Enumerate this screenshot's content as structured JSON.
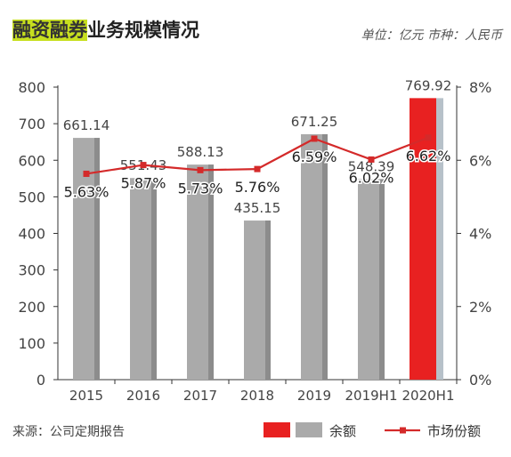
{
  "header": {
    "title_highlight": "融资融券",
    "title_rest": "业务规模情况",
    "unit": "单位：亿元 市种：人民币"
  },
  "source": "来源：公司定期报告",
  "colors": {
    "bar": "#aaaaaa",
    "bar_highlight": "#e82121",
    "line": "#d42a2a",
    "axis": "#333333"
  },
  "chart_data": {
    "type": "bar",
    "categories": [
      "2015",
      "2016",
      "2017",
      "2018",
      "2019",
      "2019H1",
      "2020H1"
    ],
    "series": [
      {
        "name": "余额",
        "type": "bar",
        "axis": "left",
        "values": [
          661.14,
          551.43,
          588.13,
          435.15,
          671.25,
          548.39,
          769.92
        ],
        "labels": [
          "661.14",
          "551.43",
          "588.13",
          "435.15",
          "671.25",
          "548.39",
          "769.92"
        ],
        "highlight_index": 6
      },
      {
        "name": "市场份额",
        "type": "line",
        "axis": "right",
        "values": [
          5.63,
          5.87,
          5.73,
          5.76,
          6.59,
          6.02,
          6.62
        ],
        "labels": [
          "5.63%",
          "5.87%",
          "5.73%",
          "5.76%",
          "6.59%",
          "6.02%",
          "6.62%"
        ]
      }
    ],
    "left_axis": {
      "min": 0,
      "max": 800,
      "ticks": [
        "0",
        "100",
        "200",
        "300",
        "400",
        "500",
        "600",
        "700",
        "800"
      ]
    },
    "right_axis": {
      "min": 0,
      "max": 8,
      "ticks": [
        "0%",
        "2%",
        "4%",
        "6%",
        "8%"
      ]
    },
    "legend": {
      "position": "bottom-right"
    },
    "grid": false
  }
}
